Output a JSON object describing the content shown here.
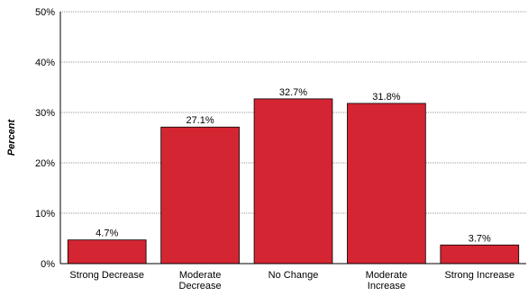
{
  "chart_data": {
    "type": "bar",
    "categories": [
      [
        "Strong Decrease"
      ],
      [
        "Moderate",
        "Decrease"
      ],
      [
        "No Change"
      ],
      [
        "Moderate",
        "Increase"
      ],
      [
        "Strong Increase"
      ]
    ],
    "values": [
      4.7,
      27.1,
      32.7,
      31.8,
      3.7
    ],
    "data_labels": [
      "4.7%",
      "27.1%",
      "32.7%",
      "31.8%",
      "3.7%"
    ],
    "title": "",
    "xlabel": "",
    "ylabel": "Percent",
    "ylim": [
      0,
      50
    ],
    "yticks": [
      0,
      10,
      20,
      30,
      40,
      50
    ],
    "ytick_labels": [
      "0%",
      "10%",
      "20%",
      "30%",
      "40%",
      "50%"
    ],
    "grid": true,
    "bar_color": "#d42532"
  }
}
